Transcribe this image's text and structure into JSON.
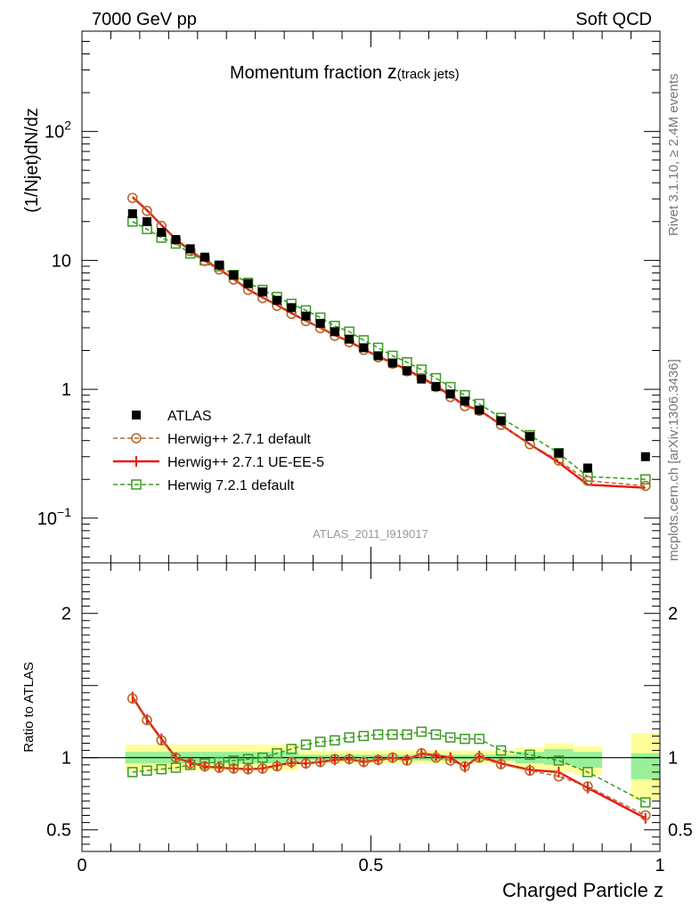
{
  "header": {
    "left": "7000 GeV pp",
    "right": "Soft QCD"
  },
  "side_labels": {
    "rivet": "Rivet 3.1.10, ≥ 2.4M events",
    "mcplots": "mcplots.cern.ch [arXiv:1306.3436]"
  },
  "colors": {
    "atlas": "#000000",
    "herwig_pp_default": "#b8682a",
    "herwig_pp_ueee5": "#ee1111",
    "herwig7": "#3a9a20",
    "band_inner": "#99f099",
    "band_outer": "#ffff99"
  },
  "chart_data": [
    {
      "type": "scatter",
      "title_main": "Momentum fraction ",
      "title_var": "z",
      "title_sub": "(track jets)",
      "analysis_id": "ATLAS_2011_I919017",
      "ylabel": "(1/Njet)dN/dz",
      "yscale": "log",
      "ylim": [
        0.045,
        600
      ],
      "xlim": [
        0,
        1
      ],
      "y_tick_labels": [
        {
          "value": 0.1,
          "base": "10",
          "exp": "−1"
        },
        {
          "value": 1,
          "base": "1",
          "exp": ""
        },
        {
          "value": 10,
          "base": "10",
          "exp": ""
        },
        {
          "value": 100,
          "base": "10",
          "exp": "2"
        }
      ],
      "legend_position": "middle-left",
      "legend": [
        {
          "key": "atlas",
          "label": "ATLAS"
        },
        {
          "key": "herwig_pp_default",
          "label": "Herwig++ 2.7.1 default"
        },
        {
          "key": "herwig_pp_ueee5",
          "label": "Herwig++ 2.7.1 UE-EE-5"
        },
        {
          "key": "herwig7",
          "label": "Herwig 7.2.1 default"
        }
      ],
      "x": [
        0.0875,
        0.1125,
        0.1375,
        0.1625,
        0.1875,
        0.2125,
        0.2375,
        0.2625,
        0.2875,
        0.3125,
        0.3375,
        0.3625,
        0.3875,
        0.4125,
        0.4375,
        0.4625,
        0.4875,
        0.5125,
        0.5375,
        0.5625,
        0.5875,
        0.6125,
        0.6375,
        0.6625,
        0.6875,
        0.725,
        0.775,
        0.825,
        0.875,
        0.975
      ],
      "series": [
        {
          "key": "atlas",
          "name": "ATLAS",
          "values": [
            23,
            20,
            16.5,
            14.5,
            12.3,
            10.6,
            9.2,
            7.7,
            6.6,
            5.7,
            4.9,
            4.3,
            3.7,
            3.25,
            2.8,
            2.45,
            2.1,
            1.82,
            1.6,
            1.39,
            1.2,
            1.05,
            0.92,
            0.81,
            0.69,
            0.57,
            0.43,
            0.32,
            0.245,
            0.3
          ]
        },
        {
          "key": "herwig_pp_default",
          "name": "Herwig++ 2.7.1 default",
          "values": [
            30.5,
            24.2,
            18.5,
            14.4,
            11.8,
            9.9,
            8.5,
            7.1,
            5.9,
            5.1,
            4.45,
            3.85,
            3.38,
            2.98,
            2.6,
            2.32,
            2.02,
            1.77,
            1.58,
            1.38,
            1.22,
            1.04,
            0.87,
            0.74,
            0.68,
            0.53,
            0.375,
            0.28,
            0.195,
            0.178
          ]
        },
        {
          "key": "herwig_pp_ueee5",
          "name": "Herwig++ 2.7.1 UE-EE-5",
          "values": [
            31,
            24.5,
            18.8,
            14.6,
            11.9,
            9.95,
            8.55,
            7.15,
            5.95,
            5.15,
            4.5,
            3.9,
            3.4,
            3.0,
            2.63,
            2.35,
            2.04,
            1.8,
            1.6,
            1.42,
            1.23,
            1.07,
            0.89,
            0.75,
            0.69,
            0.53,
            0.375,
            0.27,
            0.182,
            0.172
          ]
        },
        {
          "key": "herwig7",
          "name": "Herwig 7.2.1 default",
          "values": [
            20,
            17.5,
            15,
            13.5,
            11.3,
            10,
            9.0,
            7.7,
            6.7,
            5.9,
            5.2,
            4.6,
            4.1,
            3.6,
            3.1,
            2.8,
            2.4,
            2.1,
            1.82,
            1.62,
            1.42,
            1.22,
            1.04,
            0.9,
            0.77,
            0.6,
            0.44,
            0.32,
            0.21,
            0.2
          ]
        }
      ]
    },
    {
      "type": "scatter",
      "ylabel": "Ratio to ATLAS",
      "xlabel": "Charged Particle z",
      "ylim": [
        0.35,
        2.35
      ],
      "xlim": [
        0,
        1
      ],
      "reference_line": 1,
      "y_tick_labels": [
        {
          "value": 0.5,
          "label": "0.5"
        },
        {
          "value": 1,
          "label": "1"
        },
        {
          "value": 2,
          "label": "2"
        }
      ],
      "x_tick_labels": [
        {
          "value": 0,
          "label": "0"
        },
        {
          "value": 0.5,
          "label": "0.5"
        },
        {
          "value": 1,
          "label": "1"
        }
      ],
      "x": [
        0.0875,
        0.1125,
        0.1375,
        0.1625,
        0.1875,
        0.2125,
        0.2375,
        0.2625,
        0.2875,
        0.3125,
        0.3375,
        0.3625,
        0.3875,
        0.4125,
        0.4375,
        0.4625,
        0.4875,
        0.5125,
        0.5375,
        0.5625,
        0.5875,
        0.6125,
        0.6375,
        0.6625,
        0.6875,
        0.725,
        0.775,
        0.825,
        0.875,
        0.975
      ],
      "series": [
        {
          "key": "herwig_pp_default",
          "name": "Herwig++ 2.7.1 default",
          "values": [
            1.41,
            1.26,
            1.12,
            1.0,
            0.96,
            0.94,
            0.93,
            0.925,
            0.92,
            0.925,
            0.94,
            0.97,
            0.96,
            0.97,
            0.99,
            0.99,
            0.97,
            0.985,
            1.0,
            0.98,
            1.03,
            1.0,
            0.98,
            0.94,
            1.0,
            0.955,
            0.91,
            0.87,
            0.8,
            0.6
          ]
        },
        {
          "key": "herwig_pp_ueee5",
          "name": "Herwig++ 2.7.1 UE-EE-5",
          "values": [
            1.42,
            1.265,
            1.13,
            1.0,
            0.965,
            0.94,
            0.93,
            0.925,
            0.92,
            0.925,
            0.945,
            0.965,
            0.96,
            0.97,
            0.985,
            0.99,
            0.97,
            0.985,
            1.0,
            0.985,
            1.03,
            1.015,
            1.0,
            0.935,
            1.01,
            0.96,
            0.915,
            0.9,
            0.79,
            0.58
          ]
        },
        {
          "key": "herwig7",
          "name": "Herwig 7.2.1 default",
          "values": [
            0.9,
            0.91,
            0.92,
            0.93,
            0.95,
            0.96,
            0.97,
            0.98,
            0.99,
            1.0,
            1.03,
            1.06,
            1.09,
            1.11,
            1.12,
            1.14,
            1.15,
            1.16,
            1.16,
            1.16,
            1.18,
            1.16,
            1.14,
            1.13,
            1.13,
            1.05,
            1.02,
            0.98,
            0.9,
            0.69
          ]
        }
      ],
      "bands": [
        {
          "x0": 0.075,
          "x1": 0.375,
          "inner": [
            0.96,
            1.04
          ],
          "outer": [
            0.91,
            1.09
          ]
        },
        {
          "x0": 0.375,
          "x1": 0.75,
          "inner": [
            0.98,
            1.02
          ],
          "outer": [
            0.96,
            1.05
          ]
        },
        {
          "x0": 0.75,
          "x1": 0.8,
          "inner": [
            0.96,
            1.04
          ],
          "outer": [
            0.92,
            1.07
          ]
        },
        {
          "x0": 0.8,
          "x1": 0.85,
          "inner": [
            0.95,
            1.06
          ],
          "outer": [
            0.9,
            1.1
          ]
        },
        {
          "x0": 0.85,
          "x1": 0.9,
          "inner": [
            0.93,
            1.04
          ],
          "outer": [
            0.88,
            1.08
          ]
        },
        {
          "x0": 0.95,
          "x1": 1.0,
          "inner": [
            0.85,
            1.03
          ],
          "outer": [
            0.71,
            1.17
          ]
        }
      ]
    }
  ]
}
